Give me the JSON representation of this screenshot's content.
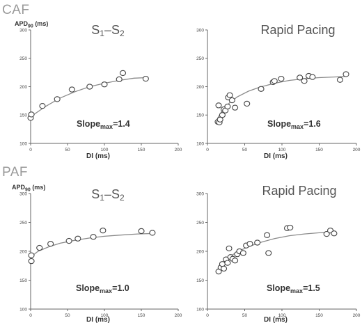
{
  "group_labels": {
    "top": "CAF",
    "bottom": "PAF"
  },
  "chart_data": [
    {
      "type": "scatter",
      "title": "S1-S2",
      "title_main": "S",
      "title_sub1": "1",
      "title_dash": "–S",
      "title_sub2": "2",
      "ylabel_main": "APD",
      "ylabel_sub": "90",
      "ylabel_unit": " (ms)",
      "xlabel": "DI (ms)",
      "xlim": [
        0,
        200
      ],
      "ylim": [
        100,
        300
      ],
      "x_ticks": [
        0,
        50,
        100,
        150,
        200
      ],
      "y_ticks": [
        100,
        150,
        200,
        250,
        300
      ],
      "slope_main": "Slope",
      "slope_sub": "max",
      "slope_value": "=1.4",
      "points": [
        {
          "x": 0,
          "y": 145
        },
        {
          "x": 1,
          "y": 151
        },
        {
          "x": 16,
          "y": 166
        },
        {
          "x": 36,
          "y": 178
        },
        {
          "x": 56,
          "y": 195
        },
        {
          "x": 80,
          "y": 200
        },
        {
          "x": 100,
          "y": 204
        },
        {
          "x": 120,
          "y": 213
        },
        {
          "x": 125,
          "y": 224
        },
        {
          "x": 156,
          "y": 214
        }
      ],
      "fit": {
        "x": [
          0,
          20,
          40,
          60,
          80,
          100,
          120,
          140,
          157
        ],
        "y": [
          147,
          165,
          180,
          191,
          200,
          206,
          211,
          215,
          216
        ]
      }
    },
    {
      "type": "scatter",
      "title": "Rapid Pacing",
      "ylabel_main": "APD",
      "ylabel_sub": "90",
      "ylabel_unit": " (ms)",
      "xlabel": "DI (ms)",
      "xlim": [
        0,
        200
      ],
      "ylim": [
        100,
        300
      ],
      "x_ticks": [
        0,
        50,
        100,
        150,
        200
      ],
      "y_ticks": [
        100,
        150,
        200,
        250,
        300
      ],
      "slope_main": "Slope",
      "slope_sub": "max",
      "slope_value": "=1.6",
      "points": [
        {
          "x": 14,
          "y": 138
        },
        {
          "x": 16,
          "y": 137
        },
        {
          "x": 17,
          "y": 142
        },
        {
          "x": 15,
          "y": 167
        },
        {
          "x": 20,
          "y": 150
        },
        {
          "x": 22,
          "y": 160
        },
        {
          "x": 24,
          "y": 158
        },
        {
          "x": 27,
          "y": 165
        },
        {
          "x": 28,
          "y": 181
        },
        {
          "x": 30,
          "y": 185
        },
        {
          "x": 33,
          "y": 176
        },
        {
          "x": 37,
          "y": 163
        },
        {
          "x": 53,
          "y": 170
        },
        {
          "x": 72,
          "y": 196
        },
        {
          "x": 88,
          "y": 208
        },
        {
          "x": 90,
          "y": 210
        },
        {
          "x": 99,
          "y": 214
        },
        {
          "x": 124,
          "y": 216
        },
        {
          "x": 130,
          "y": 210
        },
        {
          "x": 136,
          "y": 219
        },
        {
          "x": 141,
          "y": 217
        },
        {
          "x": 178,
          "y": 212
        },
        {
          "x": 186,
          "y": 222
        }
      ],
      "fit": {
        "x": [
          13,
          20,
          30,
          40,
          55,
          70,
          90,
          110,
          130,
          150,
          170,
          185
        ],
        "y": [
          143,
          158,
          172,
          182,
          192,
          199,
          206,
          211,
          214,
          216,
          217,
          218
        ]
      }
    },
    {
      "type": "scatter",
      "title": "S1-S2",
      "title_main": "S",
      "title_sub1": "1",
      "title_dash": "–S",
      "title_sub2": "2",
      "ylabel_main": "APD",
      "ylabel_sub": "90",
      "ylabel_unit": " (ms)",
      "xlabel": "DI (ms)",
      "xlim": [
        0,
        200
      ],
      "ylim": [
        100,
        300
      ],
      "x_ticks": [
        0,
        50,
        100,
        150,
        200
      ],
      "y_ticks": [
        100,
        150,
        200,
        250,
        300
      ],
      "slope_main": "Slope",
      "slope_sub": "max",
      "slope_value": "=1.0",
      "points": [
        {
          "x": 1,
          "y": 183
        },
        {
          "x": 1,
          "y": 193
        },
        {
          "x": 12,
          "y": 206
        },
        {
          "x": 27,
          "y": 213
        },
        {
          "x": 52,
          "y": 218
        },
        {
          "x": 64,
          "y": 222
        },
        {
          "x": 85,
          "y": 225
        },
        {
          "x": 98,
          "y": 236
        },
        {
          "x": 150,
          "y": 235
        },
        {
          "x": 165,
          "y": 232
        }
      ],
      "fit": {
        "x": [
          0,
          10,
          25,
          40,
          60,
          80,
          100,
          120,
          145,
          168
        ],
        "y": [
          190,
          200,
          208,
          214,
          219,
          223,
          226,
          228,
          230,
          231
        ]
      }
    },
    {
      "type": "scatter",
      "title": "Rapid Pacing",
      "ylabel_main": "APD",
      "ylabel_sub": "90",
      "ylabel_unit": " (ms)",
      "xlabel": "DI (ms)",
      "xlim": [
        0,
        200
      ],
      "ylim": [
        100,
        300
      ],
      "x_ticks": [
        0,
        50,
        100,
        150,
        200
      ],
      "y_ticks": [
        100,
        150,
        200,
        250,
        300
      ],
      "slope_main": "Slope",
      "slope_sub": "max",
      "slope_value": "=1.5",
      "points": [
        {
          "x": 15,
          "y": 165
        },
        {
          "x": 18,
          "y": 172
        },
        {
          "x": 20,
          "y": 178
        },
        {
          "x": 22,
          "y": 170
        },
        {
          "x": 25,
          "y": 186
        },
        {
          "x": 27,
          "y": 180
        },
        {
          "x": 29,
          "y": 205
        },
        {
          "x": 31,
          "y": 190
        },
        {
          "x": 34,
          "y": 187
        },
        {
          "x": 37,
          "y": 184
        },
        {
          "x": 40,
          "y": 195
        },
        {
          "x": 43,
          "y": 200
        },
        {
          "x": 48,
          "y": 197
        },
        {
          "x": 52,
          "y": 210
        },
        {
          "x": 57,
          "y": 213
        },
        {
          "x": 67,
          "y": 215
        },
        {
          "x": 80,
          "y": 228
        },
        {
          "x": 82,
          "y": 197
        },
        {
          "x": 107,
          "y": 240
        },
        {
          "x": 111,
          "y": 241
        },
        {
          "x": 160,
          "y": 230
        },
        {
          "x": 165,
          "y": 236
        },
        {
          "x": 170,
          "y": 231
        }
      ],
      "fit": {
        "x": [
          14,
          20,
          30,
          40,
          55,
          70,
          90,
          110,
          130,
          150,
          172
        ],
        "y": [
          170,
          180,
          191,
          199,
          208,
          215,
          222,
          227,
          230,
          232,
          234
        ]
      }
    }
  ]
}
